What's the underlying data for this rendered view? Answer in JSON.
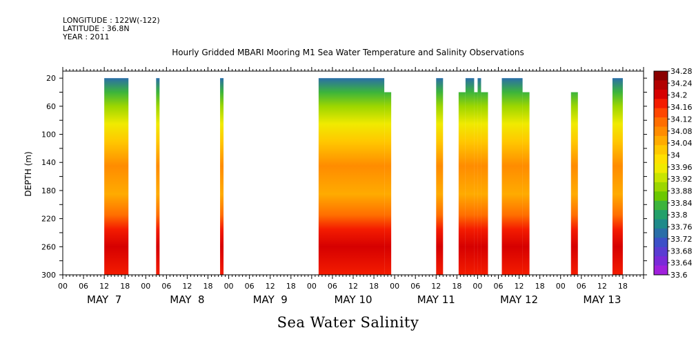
{
  "header": {
    "longitude": "LONGITUDE : 122W(-122)",
    "latitude": "LATITUDE : 36.8N",
    "year": "YEAR : 2011"
  },
  "title": "Hourly Gridded MBARI Mooring M1 Sea Water Temperature and Salinity Observations",
  "bottom_title": "Sea Water Salinity",
  "chart_data": {
    "type": "heatmap",
    "ylabel": "DEPTH (m)",
    "ylim": [
      300,
      10
    ],
    "y_ticks": [
      20,
      60,
      100,
      140,
      180,
      220,
      260,
      300
    ],
    "x_hour_ticks": [
      "00",
      "06",
      "12",
      "18",
      "00",
      "06",
      "12",
      "18",
      "00",
      "06",
      "12",
      "18",
      "00",
      "06",
      "12",
      "18",
      "00",
      "06",
      "12",
      "18",
      "00",
      "06",
      "12",
      "18",
      "00",
      "06",
      "12",
      "18"
    ],
    "day_labels": [
      "MAY  7",
      "MAY  8",
      "MAY  9",
      "MAY 10",
      "MAY 11",
      "MAY 12",
      "MAY 13"
    ],
    "x_range_hours": [
      0,
      168
    ],
    "colorbar": {
      "levels": [
        "34.28",
        "34.24",
        "34.2",
        "34.16",
        "34.12",
        "34.08",
        "34.04",
        "34",
        "33.96",
        "33.92",
        "33.88",
        "33.84",
        "33.8",
        "33.76",
        "33.72",
        "33.68",
        "33.64",
        "33.6"
      ],
      "colors": [
        "#8a0000",
        "#b20000",
        "#d60000",
        "#f41c00",
        "#ff4600",
        "#ff6e00",
        "#ff8c00",
        "#ffab00",
        "#ffc800",
        "#ffe000",
        "#f0ea00",
        "#c8e400",
        "#9cd600",
        "#6cc800",
        "#3cb43c",
        "#22a06a",
        "#1e8a8a",
        "#2a6ea8",
        "#3c50c8",
        "#5a3cd2",
        "#7a2ad8",
        "#a020dc"
      ]
    },
    "profiles": [
      {
        "day": "May 7",
        "start_hour": 12,
        "end_hour": 19,
        "top_depth": 20,
        "bottom_depth": 300
      },
      {
        "day": "May 8",
        "start_hour": 27,
        "end_hour": 28,
        "top_depth": 20,
        "bottom_depth": 300
      },
      {
        "day": "May 8",
        "start_hour": 45.5,
        "end_hour": 46.5,
        "top_depth": 20,
        "bottom_depth": 300
      },
      {
        "day": "May 10",
        "start_hour": 74,
        "end_hour": 93,
        "top_depth": 20,
        "bottom_depth": 300
      },
      {
        "day": "May 10",
        "start_hour": 93,
        "end_hour": 95,
        "top_depth": 40,
        "bottom_depth": 300
      },
      {
        "day": "May 11",
        "start_hour": 108,
        "end_hour": 110,
        "top_depth": 20,
        "bottom_depth": 300
      },
      {
        "day": "May 11",
        "start_hour": 114.5,
        "end_hour": 116.5,
        "top_depth": 40,
        "bottom_depth": 300
      },
      {
        "day": "May 11",
        "start_hour": 116.5,
        "end_hour": 119,
        "top_depth": 20,
        "bottom_depth": 300
      },
      {
        "day": "May 11",
        "start_hour": 119,
        "end_hour": 120,
        "top_depth": 40,
        "bottom_depth": 300
      },
      {
        "day": "May 12",
        "start_hour": 120,
        "end_hour": 121,
        "top_depth": 20,
        "bottom_depth": 300
      },
      {
        "day": "May 12",
        "start_hour": 121,
        "end_hour": 123,
        "top_depth": 40,
        "bottom_depth": 300
      },
      {
        "day": "May 12",
        "start_hour": 127,
        "end_hour": 133,
        "top_depth": 20,
        "bottom_depth": 300
      },
      {
        "day": "May 12",
        "start_hour": 133,
        "end_hour": 135,
        "top_depth": 40,
        "bottom_depth": 300
      },
      {
        "day": "May 13",
        "start_hour": 147,
        "end_hour": 149,
        "top_depth": 40,
        "bottom_depth": 300
      },
      {
        "day": "May 13",
        "start_hour": 159,
        "end_hour": 162,
        "top_depth": 20,
        "bottom_depth": 300
      }
    ],
    "profile_colors": [
      {
        "depth": 20,
        "color": "#2a6ea8"
      },
      {
        "depth": 40,
        "color": "#3cb43c"
      },
      {
        "depth": 60,
        "color": "#9cd600"
      },
      {
        "depth": 85,
        "color": "#f0ea00"
      },
      {
        "depth": 110,
        "color": "#ffc800"
      },
      {
        "depth": 145,
        "color": "#ff8c00"
      },
      {
        "depth": 185,
        "color": "#ffab00"
      },
      {
        "depth": 215,
        "color": "#ff6e00"
      },
      {
        "depth": 235,
        "color": "#f41c00"
      },
      {
        "depth": 260,
        "color": "#d60000"
      },
      {
        "depth": 300,
        "color": "#f41c00"
      }
    ],
    "grid": false
  }
}
